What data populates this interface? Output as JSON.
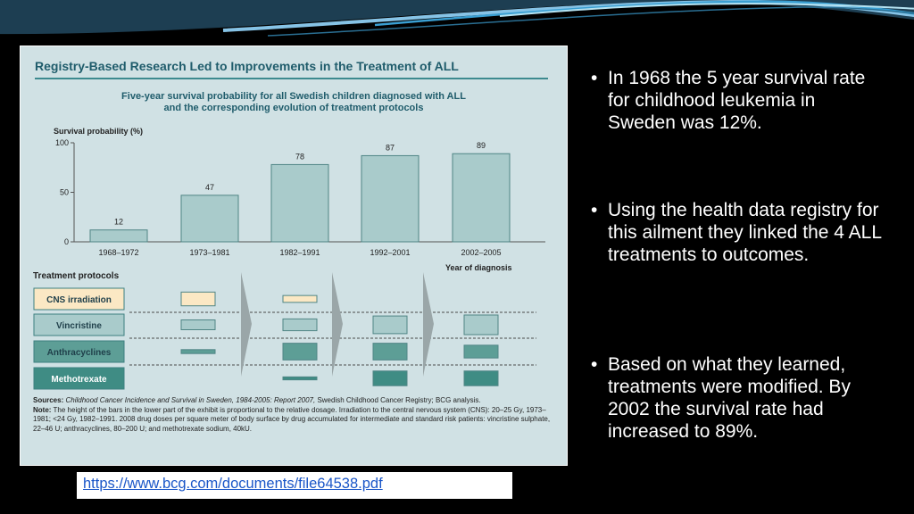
{
  "figure": {
    "title": "Registry-Based Research Led to Improvements in the Treatment of ALL",
    "subtitle_line1": "Five-year survival probability for all Swedish children diagnosed with ALL",
    "subtitle_line2": "and the corresponding evolution of treatment protocols",
    "sources_label": "Sources:",
    "sources_italic": "Childhood Cancer Incidence and Survival in Sweden, 1984-2005: Report 2007,",
    "sources_rest": " Swedish Childhood Cancer Registry; BCG analysis.",
    "note_label": "Note:",
    "note_text": " The height of the bars in the lower part of the exhibit is proportional to the relative dosage. Irradiation to the central nervous system (CNS): 20–25 Gy, 1973–1981; <24 Gy, 1982–1991. 2008 drug doses per square meter of body surface by drug accumulated for intermediate and standard risk patients: vincristine sulphate, 22–46 U; anthracyclines, 80–200 U; and methotrexate sodium, 40kU."
  },
  "chart_data": {
    "type": "bar",
    "title": "Five-year survival probability for all Swedish children diagnosed with ALL and the corresponding evolution of treatment protocols",
    "ylabel": "Survival probability (%)",
    "xlabel": "Year of diagnosis",
    "categories": [
      "1968–1972",
      "1973–1981",
      "1982–1991",
      "1992–2001",
      "2002–2005"
    ],
    "values": [
      12,
      47,
      78,
      87,
      89
    ],
    "ylim": [
      0,
      100
    ],
    "yticks": [
      0,
      50,
      100
    ],
    "bar_color": "#a9cbcb",
    "protocols_title": "Treatment protocols",
    "protocols": [
      {
        "name": "CNS irradiation",
        "color": "#fbe8c4",
        "doses": [
          0,
          0.7,
          0.35,
          0,
          0
        ]
      },
      {
        "name": "Vincristine",
        "color": "#a9cbcb",
        "doses": [
          0,
          0.5,
          0.6,
          0.9,
          1.0
        ]
      },
      {
        "name": "Anthracyclines",
        "color": "#5d9e96",
        "doses": [
          0,
          0.2,
          0.85,
          0.85,
          0.65
        ]
      },
      {
        "name": "Methotrexate",
        "color": "#3f8c84",
        "doses": [
          0,
          0,
          0.15,
          0.75,
          0.75
        ]
      }
    ]
  },
  "slide": {
    "bullets": [
      "In 1968 the 5 year survival rate for childhood leukemia in Sweden was 12%.",
      "Using the health data registry for this ailment they linked the 4 ALL treatments to outcomes.",
      "Based on what they learned, treatments were modified. By 2002 the survival rate had increased to 89%."
    ],
    "bullet_char": "•",
    "url": "https://www.bcg.com/documents/file64538.pdf"
  }
}
